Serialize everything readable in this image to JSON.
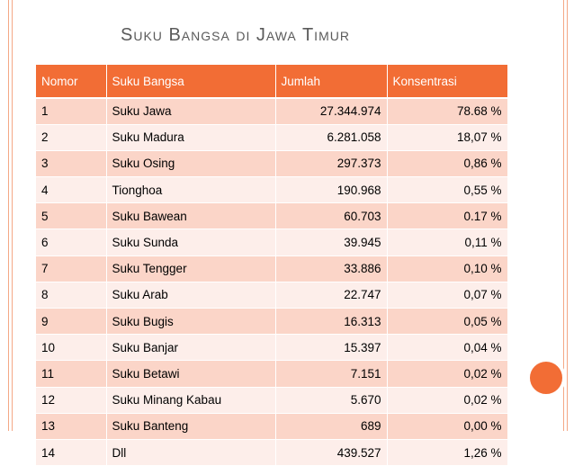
{
  "slide": {
    "title": "Suku Bangsa di Jawa Timur"
  },
  "table": {
    "headers": [
      "Nomor",
      "Suku Bangsa",
      "Jumlah",
      "Konsentrasi"
    ],
    "rows": [
      [
        "1",
        "Suku Jawa",
        "27.344.974",
        "78.68 %"
      ],
      [
        "2",
        "Suku Madura",
        "6.281.058",
        "18,07 %"
      ],
      [
        "3",
        "Suku Osing",
        "297.373",
        "0,86 %"
      ],
      [
        "4",
        "Tionghoa",
        "190.968",
        "0,55 %"
      ],
      [
        "5",
        "Suku Bawean",
        "60.703",
        "0.17 %"
      ],
      [
        "6",
        "Suku Sunda",
        "39.945",
        "0,11 %"
      ],
      [
        "7",
        "Suku Tengger",
        "33.886",
        "0,10 %"
      ],
      [
        "8",
        "Suku Arab",
        "22.747",
        "0,07 %"
      ],
      [
        "9",
        "Suku Bugis",
        "16.313",
        "0,05 %"
      ],
      [
        "10",
        "Suku Banjar",
        "15.397",
        "0,04 %"
      ],
      [
        "11",
        "Suku Betawi",
        "7.151",
        "0,02 %"
      ],
      [
        "12",
        "Suku Minang Kabau",
        "5.670",
        "0,02 %"
      ],
      [
        "13",
        "Suku Banteng",
        "689",
        "0,00 %"
      ],
      [
        "14",
        "Dll",
        "439.527",
        "1,26 %"
      ]
    ]
  },
  "colors": {
    "accent": "#f26d35",
    "row_dark": "#fbd5c8",
    "row_light": "#fdeeea",
    "border_lines": "#f4a886"
  }
}
